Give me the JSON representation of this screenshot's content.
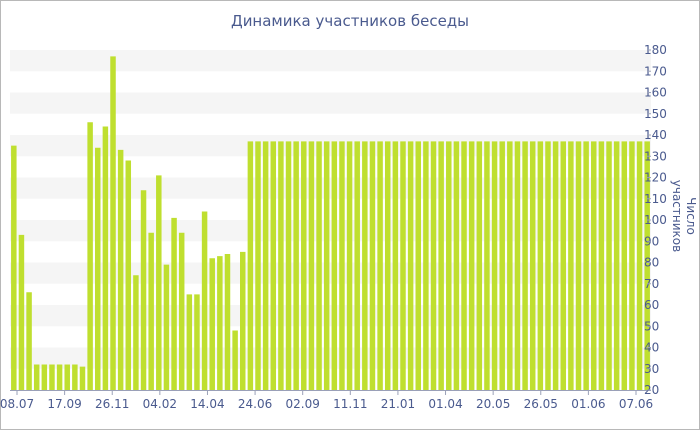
{
  "chart_data": {
    "type": "bar",
    "title": "Динамика участников беседы",
    "ylabel": "Число участников",
    "xlabel": "",
    "ylim": [
      20,
      180
    ],
    "yticks": [
      20,
      30,
      40,
      50,
      60,
      70,
      80,
      90,
      100,
      110,
      120,
      130,
      140,
      150,
      160,
      170,
      180
    ],
    "xtick_labels": [
      "08.07",
      "17.09",
      "26.11",
      "04.02",
      "14.04",
      "24.06",
      "02.09",
      "11.11",
      "21.01",
      "01.04",
      "20.05",
      "26.05",
      "01.06",
      "07.06"
    ],
    "grid": "horizontal bands",
    "bar_color": "#bfdf2f",
    "values": [
      135,
      93,
      66,
      32,
      32,
      32,
      32,
      32,
      32,
      31,
      146,
      134,
      144,
      177,
      133,
      128,
      74,
      114,
      94,
      121,
      79,
      101,
      94,
      65,
      65,
      104,
      82,
      83,
      84,
      48,
      85,
      137,
      137,
      137,
      137,
      137,
      137,
      137,
      137,
      137,
      137,
      137,
      137,
      137,
      137,
      137,
      137,
      137,
      137,
      137,
      137,
      137,
      137,
      137,
      137,
      137,
      137,
      137,
      137,
      137,
      137,
      137,
      137,
      137,
      137,
      137,
      137,
      137,
      137,
      137,
      137,
      137,
      137,
      137,
      137,
      137,
      137,
      137,
      137,
      137,
      137,
      137,
      137,
      137
    ]
  }
}
